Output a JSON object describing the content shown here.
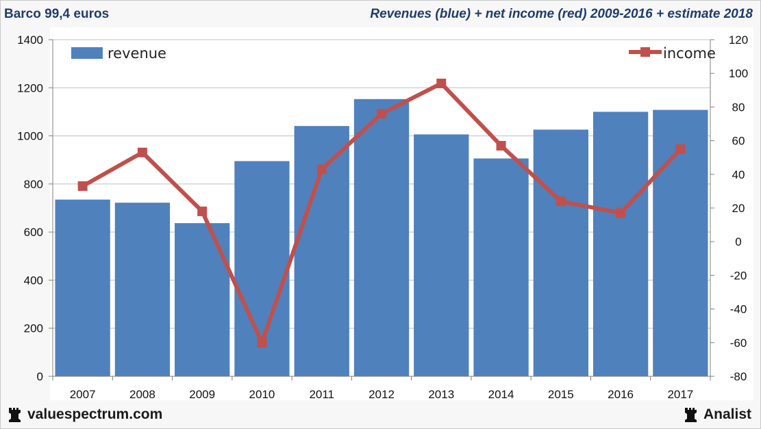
{
  "header": {
    "left_title": "Barco 99,4 euros",
    "right_title": "Revenues (blue) + net income (red) 2009-2016 + estimate 2018"
  },
  "footer": {
    "brand_left": "valuespectrum.com",
    "brand_right": "Analist"
  },
  "colors": {
    "bar": "#4f81bd",
    "line": "#c0504d",
    "grid": "#bfbfbf",
    "title": "#1f3c6e"
  },
  "chart_data": {
    "type": "bar",
    "categories": [
      "2007",
      "2008",
      "2009",
      "2010",
      "2011",
      "2012",
      "2013",
      "2014",
      "2015",
      "2016",
      "2017"
    ],
    "series": [
      {
        "name": "revenue",
        "type": "bar",
        "axis": "left",
        "values": [
          735,
          722,
          637,
          895,
          1041,
          1153,
          1006,
          906,
          1026,
          1100,
          1108
        ]
      },
      {
        "name": "income",
        "type": "line",
        "axis": "right",
        "values": [
          33,
          53,
          18,
          -60,
          43,
          76,
          94,
          57,
          24,
          17,
          55
        ]
      }
    ],
    "y_left": {
      "min": 0,
      "max": 1400,
      "step": 200,
      "ticks": [
        "0",
        "200",
        "400",
        "600",
        "800",
        "1000",
        "1200",
        "1400"
      ]
    },
    "y_right": {
      "min": -80,
      "max": 120,
      "step": 20,
      "ticks": [
        "-80",
        "-60",
        "-40",
        "-20",
        "0",
        "20",
        "40",
        "60",
        "80",
        "100",
        "120"
      ]
    },
    "grid": true,
    "legend": {
      "revenue": "top-left",
      "income": "top-right"
    }
  }
}
